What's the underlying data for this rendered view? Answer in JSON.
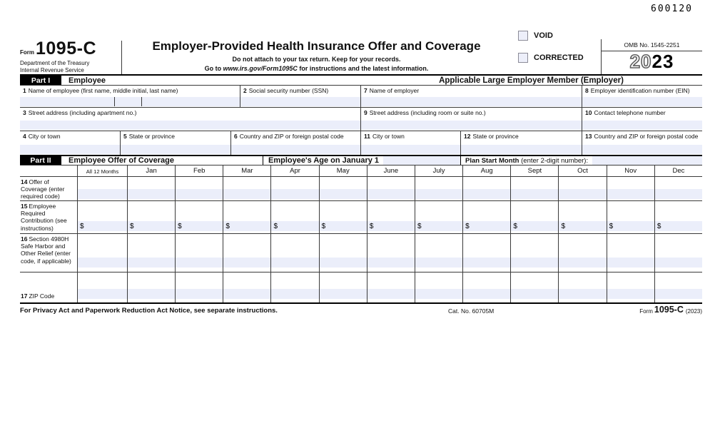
{
  "doc_id": "600120",
  "header": {
    "form_label": "Form",
    "form_number": "1095-C",
    "agency_line1": "Department of the Treasury",
    "agency_line2": "Internal Revenue Service",
    "title": "Employer-Provided Health Insurance Offer and Coverage",
    "subtitle1": "Do not attach to your tax return. Keep for your records.",
    "subtitle2_prefix": "Go to ",
    "subtitle2_url": "www.irs.gov/Form1095C",
    "subtitle2_suffix": " for instructions and the latest information.",
    "void_label": "VOID",
    "corrected_label": "CORRECTED",
    "omb": "OMB No. 1545-2251",
    "year_outline": "20",
    "year_bold": "23"
  },
  "part1": {
    "label": "Part I",
    "left_title": "Employee",
    "right_title": "Applicable Large Employer Member (Employer)",
    "fields": [
      {
        "num": "1",
        "label": "Name of employee (first name, middle initial, last name)"
      },
      {
        "num": "2",
        "label": "Social security number (SSN)"
      },
      {
        "num": "3",
        "label": "Street address (including apartment no.)"
      },
      {
        "num": "4",
        "label": "City or town"
      },
      {
        "num": "5",
        "label": "State or province"
      },
      {
        "num": "6",
        "label": "Country and ZIP or foreign postal code"
      },
      {
        "num": "7",
        "label": "Name of employer"
      },
      {
        "num": "8",
        "label": "Employer identification number (EIN)"
      },
      {
        "num": "9",
        "label": "Street address (including room or suite no.)"
      },
      {
        "num": "10",
        "label": "Contact telephone number"
      },
      {
        "num": "11",
        "label": "City or town"
      },
      {
        "num": "12",
        "label": "State or province"
      },
      {
        "num": "13",
        "label": "Country and ZIP or foreign postal code"
      }
    ]
  },
  "part2": {
    "label": "Part II",
    "title_left": "Employee Offer of Coverage",
    "title_mid": "Employee's Age on January 1",
    "title_right_bold": "Plan Start Month",
    "title_right_rest": " (enter 2-digit number):",
    "columns": [
      "All 12 Months",
      "Jan",
      "Feb",
      "Mar",
      "Apr",
      "May",
      "June",
      "July",
      "Aug",
      "Sept",
      "Oct",
      "Nov",
      "Dec"
    ],
    "currency_symbol": "$",
    "rows": [
      {
        "num": "14",
        "label": "Offer of Coverage (enter required code)"
      },
      {
        "num": "15",
        "label": "Employee Required Contribution (see instructions)"
      },
      {
        "num": "16",
        "label": "Section 4980H Safe Harbor and Other Relief (enter code, if applicable)"
      },
      {
        "num": "17",
        "label": "ZIP Code"
      }
    ]
  },
  "footer": {
    "privacy_notice": "For Privacy Act and Paperwork Reduction Act Notice, see separate instructions.",
    "catalog_number": "Cat. No. 60705M",
    "form_label": "Form",
    "form_number": "1095-C",
    "form_year": "(2023)"
  },
  "colors": {
    "entry_fill": "#ebeefa",
    "grid_line": "#3a3a3a",
    "bar_black": "#000000"
  }
}
